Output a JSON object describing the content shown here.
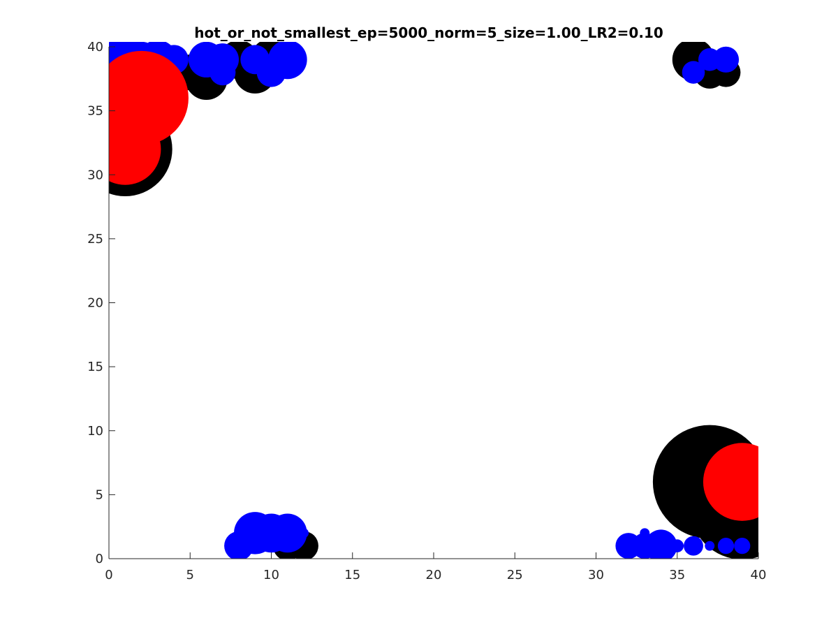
{
  "chart_data": {
    "type": "scatter",
    "title": "hot_or_not_smallest_ep=5000_norm=5_size=1.00_LR2=0.10",
    "xlabel": "",
    "ylabel": "",
    "xlim": [
      0,
      40
    ],
    "ylim": [
      0,
      40
    ],
    "xticks": [
      "0",
      "5",
      "10",
      "15",
      "20",
      "25",
      "30",
      "35",
      "40"
    ],
    "yticks": [
      "0",
      "5",
      "10",
      "15",
      "20",
      "25",
      "30",
      "35",
      "40"
    ],
    "grid": false,
    "colors": {
      "black": "#000000",
      "blue": "#0000ff",
      "red": "#ff0000",
      "axis": "#262626"
    },
    "series": [
      {
        "color": "black",
        "points": [
          {
            "x": 1,
            "y": 36.5,
            "r": 3.0
          },
          {
            "x": 1,
            "y": 32,
            "r": 2.9
          },
          {
            "x": 5,
            "y": 38,
            "r": 1.1
          },
          {
            "x": 6,
            "y": 37.5,
            "r": 1.3
          },
          {
            "x": 8,
            "y": 39,
            "r": 1.2
          },
          {
            "x": 9,
            "y": 38,
            "r": 1.3
          },
          {
            "x": 10,
            "y": 39,
            "r": 1.3
          },
          {
            "x": 36,
            "y": 39,
            "r": 1.3
          },
          {
            "x": 37,
            "y": 38,
            "r": 1.0
          },
          {
            "x": 38,
            "y": 38,
            "r": 0.9
          },
          {
            "x": 11,
            "y": 1,
            "r": 0.9
          },
          {
            "x": 12,
            "y": 1,
            "r": 0.9
          },
          {
            "x": 37,
            "y": 6,
            "r": 3.5
          },
          {
            "x": 39,
            "y": 4,
            "r": 3.2
          }
        ]
      },
      {
        "color": "blue",
        "points": [
          {
            "x": 1,
            "y": 39.5,
            "r": 1.2
          },
          {
            "x": 2,
            "y": 39,
            "r": 1.1
          },
          {
            "x": 3,
            "y": 39,
            "r": 1.2
          },
          {
            "x": 3,
            "y": 38,
            "r": 0.8
          },
          {
            "x": 4,
            "y": 39,
            "r": 0.9
          },
          {
            "x": 6,
            "y": 39,
            "r": 1.1
          },
          {
            "x": 7,
            "y": 38,
            "r": 0.8
          },
          {
            "x": 7,
            "y": 39,
            "r": 1.0
          },
          {
            "x": 9,
            "y": 39,
            "r": 0.9
          },
          {
            "x": 10,
            "y": 38,
            "r": 0.9
          },
          {
            "x": 11,
            "y": 39,
            "r": 1.2
          },
          {
            "x": 36,
            "y": 38,
            "r": 0.7
          },
          {
            "x": 37,
            "y": 39,
            "r": 0.7
          },
          {
            "x": 38,
            "y": 39,
            "r": 0.8
          },
          {
            "x": 8,
            "y": 1,
            "r": 0.9
          },
          {
            "x": 9,
            "y": 2,
            "r": 1.3
          },
          {
            "x": 10,
            "y": 2,
            "r": 1.2
          },
          {
            "x": 11,
            "y": 2,
            "r": 1.2
          },
          {
            "x": 12,
            "y": 2,
            "r": 0.3
          },
          {
            "x": 32,
            "y": 1,
            "r": 0.8
          },
          {
            "x": 33,
            "y": 1,
            "r": 0.8
          },
          {
            "x": 33,
            "y": 2,
            "r": 0.3
          },
          {
            "x": 34,
            "y": 1,
            "r": 1.0
          },
          {
            "x": 35,
            "y": 1,
            "r": 0.4
          },
          {
            "x": 36,
            "y": 1,
            "r": 0.6
          },
          {
            "x": 37,
            "y": 1,
            "r": 0.3
          },
          {
            "x": 38,
            "y": 1,
            "r": 0.5
          },
          {
            "x": 39,
            "y": 1,
            "r": 0.5
          }
        ]
      },
      {
        "color": "red",
        "points": [
          {
            "x": 2,
            "y": 36,
            "r": 2.9
          },
          {
            "x": 1,
            "y": 32,
            "r": 2.2
          },
          {
            "x": 39,
            "y": 6,
            "r": 2.4
          }
        ]
      }
    ]
  }
}
